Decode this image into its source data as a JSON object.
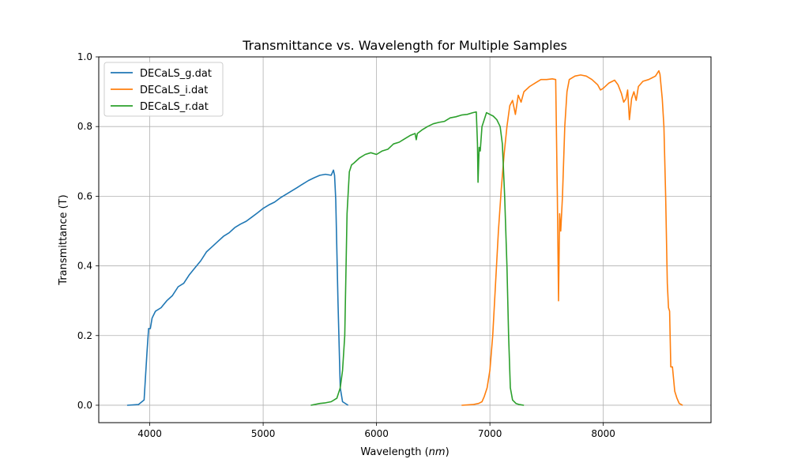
{
  "chart_data": {
    "type": "line",
    "title": "Transmittance vs. Wavelength for Multiple Samples",
    "xlabel_prefix": "Wavelength (",
    "xlabel_unit": "nm",
    "xlabel_suffix": ")",
    "ylabel": "Transmittance (T)",
    "xlim": [
      3550,
      8950
    ],
    "ylim": [
      -0.05,
      1.0
    ],
    "x_ticks": [
      4000,
      5000,
      6000,
      7000,
      8000
    ],
    "y_ticks": [
      0.0,
      0.2,
      0.4,
      0.6,
      0.8,
      1.0
    ],
    "grid": true,
    "legend_placement": "top-left",
    "series": [
      {
        "name": "DECaLS_g.dat",
        "color": "#1f77b4",
        "points": [
          [
            3800,
            0
          ],
          [
            3900,
            0.002
          ],
          [
            3950,
            0.015
          ],
          [
            3975,
            0.15
          ],
          [
            3990,
            0.22
          ],
          [
            4005,
            0.22
          ],
          [
            4020,
            0.25
          ],
          [
            4050,
            0.27
          ],
          [
            4100,
            0.28
          ],
          [
            4150,
            0.3
          ],
          [
            4200,
            0.315
          ],
          [
            4250,
            0.34
          ],
          [
            4300,
            0.35
          ],
          [
            4350,
            0.375
          ],
          [
            4400,
            0.395
          ],
          [
            4450,
            0.415
          ],
          [
            4500,
            0.44
          ],
          [
            4550,
            0.455
          ],
          [
            4600,
            0.47
          ],
          [
            4650,
            0.485
          ],
          [
            4700,
            0.495
          ],
          [
            4750,
            0.51
          ],
          [
            4800,
            0.52
          ],
          [
            4850,
            0.528
          ],
          [
            4900,
            0.54
          ],
          [
            4950,
            0.552
          ],
          [
            5000,
            0.565
          ],
          [
            5050,
            0.575
          ],
          [
            5100,
            0.583
          ],
          [
            5150,
            0.595
          ],
          [
            5200,
            0.605
          ],
          [
            5250,
            0.615
          ],
          [
            5300,
            0.625
          ],
          [
            5350,
            0.635
          ],
          [
            5400,
            0.645
          ],
          [
            5450,
            0.653
          ],
          [
            5500,
            0.66
          ],
          [
            5550,
            0.663
          ],
          [
            5600,
            0.66
          ],
          [
            5620,
            0.675
          ],
          [
            5630,
            0.66
          ],
          [
            5640,
            0.59
          ],
          [
            5660,
            0.3
          ],
          [
            5680,
            0.05
          ],
          [
            5700,
            0.01
          ],
          [
            5750,
            0.0
          ]
        ]
      },
      {
        "name": "DECaLS_i.dat",
        "color": "#ff7f0e",
        "points": [
          [
            6750,
            0
          ],
          [
            6850,
            0.002
          ],
          [
            6900,
            0.005
          ],
          [
            6930,
            0.01
          ],
          [
            6950,
            0.025
          ],
          [
            6975,
            0.05
          ],
          [
            7000,
            0.1
          ],
          [
            7025,
            0.2
          ],
          [
            7050,
            0.35
          ],
          [
            7075,
            0.5
          ],
          [
            7100,
            0.62
          ],
          [
            7125,
            0.72
          ],
          [
            7150,
            0.8
          ],
          [
            7175,
            0.86
          ],
          [
            7200,
            0.875
          ],
          [
            7225,
            0.835
          ],
          [
            7250,
            0.89
          ],
          [
            7275,
            0.87
          ],
          [
            7300,
            0.9
          ],
          [
            7350,
            0.915
          ],
          [
            7400,
            0.925
          ],
          [
            7450,
            0.935
          ],
          [
            7500,
            0.935
          ],
          [
            7550,
            0.937
          ],
          [
            7580,
            0.935
          ],
          [
            7595,
            0.6
          ],
          [
            7605,
            0.3
          ],
          [
            7615,
            0.55
          ],
          [
            7625,
            0.5
          ],
          [
            7640,
            0.6
          ],
          [
            7660,
            0.8
          ],
          [
            7680,
            0.9
          ],
          [
            7700,
            0.935
          ],
          [
            7750,
            0.945
          ],
          [
            7800,
            0.948
          ],
          [
            7850,
            0.945
          ],
          [
            7900,
            0.935
          ],
          [
            7950,
            0.92
          ],
          [
            7975,
            0.905
          ],
          [
            8000,
            0.91
          ],
          [
            8050,
            0.925
          ],
          [
            8100,
            0.933
          ],
          [
            8130,
            0.92
          ],
          [
            8160,
            0.895
          ],
          [
            8180,
            0.87
          ],
          [
            8200,
            0.88
          ],
          [
            8215,
            0.905
          ],
          [
            8230,
            0.82
          ],
          [
            8250,
            0.88
          ],
          [
            8270,
            0.9
          ],
          [
            8290,
            0.875
          ],
          [
            8310,
            0.915
          ],
          [
            8350,
            0.93
          ],
          [
            8400,
            0.935
          ],
          [
            8430,
            0.94
          ],
          [
            8460,
            0.945
          ],
          [
            8490,
            0.96
          ],
          [
            8500,
            0.95
          ],
          [
            8520,
            0.88
          ],
          [
            8535,
            0.8
          ],
          [
            8550,
            0.6
          ],
          [
            8565,
            0.35
          ],
          [
            8575,
            0.28
          ],
          [
            8585,
            0.27
          ],
          [
            8595,
            0.11
          ],
          [
            8610,
            0.11
          ],
          [
            8630,
            0.04
          ],
          [
            8650,
            0.02
          ],
          [
            8670,
            0.005
          ],
          [
            8700,
            0.0
          ]
        ]
      },
      {
        "name": "DECaLS_r.dat",
        "color": "#2ca02c",
        "points": [
          [
            5420,
            0
          ],
          [
            5500,
            0.005
          ],
          [
            5550,
            0.007
          ],
          [
            5600,
            0.01
          ],
          [
            5650,
            0.02
          ],
          [
            5680,
            0.05
          ],
          [
            5700,
            0.1
          ],
          [
            5720,
            0.2
          ],
          [
            5740,
            0.55
          ],
          [
            5760,
            0.67
          ],
          [
            5780,
            0.69
          ],
          [
            5800,
            0.695
          ],
          [
            5850,
            0.71
          ],
          [
            5900,
            0.72
          ],
          [
            5950,
            0.725
          ],
          [
            6000,
            0.72
          ],
          [
            6050,
            0.73
          ],
          [
            6100,
            0.735
          ],
          [
            6150,
            0.75
          ],
          [
            6200,
            0.755
          ],
          [
            6250,
            0.765
          ],
          [
            6300,
            0.775
          ],
          [
            6340,
            0.78
          ],
          [
            6350,
            0.762
          ],
          [
            6360,
            0.78
          ],
          [
            6400,
            0.79
          ],
          [
            6450,
            0.8
          ],
          [
            6500,
            0.808
          ],
          [
            6550,
            0.812
          ],
          [
            6600,
            0.815
          ],
          [
            6650,
            0.825
          ],
          [
            6700,
            0.828
          ],
          [
            6750,
            0.833
          ],
          [
            6800,
            0.835
          ],
          [
            6850,
            0.84
          ],
          [
            6880,
            0.842
          ],
          [
            6890,
            0.75
          ],
          [
            6895,
            0.64
          ],
          [
            6905,
            0.74
          ],
          [
            6915,
            0.73
          ],
          [
            6930,
            0.8
          ],
          [
            6950,
            0.82
          ],
          [
            6970,
            0.84
          ],
          [
            6980,
            0.838
          ],
          [
            7000,
            0.835
          ],
          [
            7030,
            0.83
          ],
          [
            7060,
            0.82
          ],
          [
            7090,
            0.8
          ],
          [
            7110,
            0.75
          ],
          [
            7130,
            0.6
          ],
          [
            7150,
            0.4
          ],
          [
            7165,
            0.2
          ],
          [
            7180,
            0.05
          ],
          [
            7200,
            0.015
          ],
          [
            7230,
            0.005
          ],
          [
            7260,
            0.002
          ],
          [
            7300,
            0.0
          ]
        ]
      }
    ]
  }
}
